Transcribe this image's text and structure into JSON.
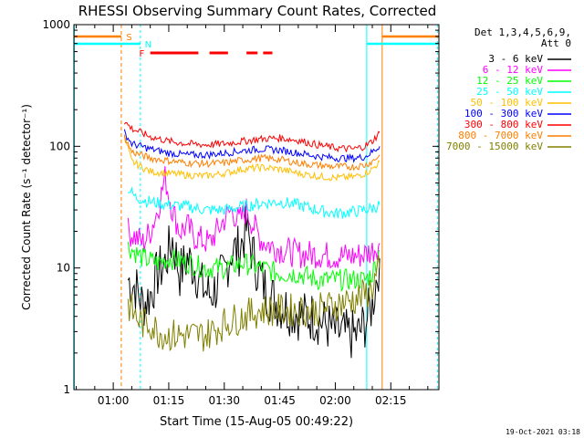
{
  "chart_data": {
    "type": "line",
    "title": "RHESSI Observing Summary Count Rates, Corrected",
    "xlabel": "Start Time (15-Aug-05 00:49:22)",
    "ylabel": "Corrected Count Rate (s⁻¹ detector⁻¹)",
    "y_scale": "log",
    "ylim": [
      1,
      1000
    ],
    "xlim": [
      "00:49:22",
      "02:28:00"
    ],
    "x_ticks": [
      "01:00",
      "01:15",
      "01:30",
      "01:45",
      "02:00",
      "02:15"
    ],
    "y_ticks": [
      "1",
      "10",
      "100",
      "1000"
    ],
    "grid": false,
    "legend_header": [
      "Det 1,3,4,5,6,9,",
      "Att 0"
    ],
    "legend_position": "right",
    "footer_date": "19-Oct-2021 03:18",
    "flags": [
      {
        "label": "S",
        "color": "#ff7f00"
      },
      {
        "label": "N",
        "color": "#00ffff"
      },
      {
        "label": "F",
        "color": "#ff0000"
      }
    ],
    "series": [
      {
        "name": "3 - 6 keV",
        "color": "#000000",
        "points": [
          [
            "01:04",
            8
          ],
          [
            "01:06",
            7
          ],
          [
            "01:08",
            5
          ],
          [
            "01:10",
            6
          ],
          [
            "01:12",
            9
          ],
          [
            "01:14",
            11
          ],
          [
            "01:16",
            17
          ],
          [
            "01:18",
            9
          ],
          [
            "01:20",
            12
          ],
          [
            "01:22",
            10
          ],
          [
            "01:24",
            7
          ],
          [
            "01:26",
            6
          ],
          [
            "01:28",
            7
          ],
          [
            "01:30",
            9
          ],
          [
            "01:32",
            14
          ],
          [
            "01:34",
            14
          ],
          [
            "01:36",
            21
          ],
          [
            "01:38",
            12
          ],
          [
            "01:40",
            8
          ],
          [
            "01:42",
            6
          ],
          [
            "01:45",
            5
          ],
          [
            "01:48",
            4.5
          ],
          [
            "01:51",
            4
          ],
          [
            "01:54",
            4
          ],
          [
            "01:57",
            3.5
          ],
          [
            "02:00",
            3
          ],
          [
            "02:03",
            2.8
          ],
          [
            "02:06",
            2.8
          ],
          [
            "02:08",
            3.5
          ],
          [
            "02:10",
            5
          ],
          [
            "02:12",
            12
          ]
        ]
      },
      {
        "name": "6 - 12 keV",
        "color": "#ff00ff",
        "points": [
          [
            "01:04",
            20
          ],
          [
            "01:06",
            18
          ],
          [
            "01:08",
            16
          ],
          [
            "01:10",
            20
          ],
          [
            "01:12",
            30
          ],
          [
            "01:14",
            55
          ],
          [
            "01:16",
            30
          ],
          [
            "01:18",
            20
          ],
          [
            "01:20",
            22
          ],
          [
            "01:22",
            18
          ],
          [
            "01:24",
            17
          ],
          [
            "01:26",
            16
          ],
          [
            "01:28",
            20
          ],
          [
            "01:30",
            25
          ],
          [
            "01:32",
            30
          ],
          [
            "01:34",
            24
          ],
          [
            "01:36",
            30
          ],
          [
            "01:38",
            22
          ],
          [
            "01:40",
            17
          ],
          [
            "01:43",
            15
          ],
          [
            "01:46",
            14
          ],
          [
            "01:50",
            13
          ],
          [
            "01:55",
            13
          ],
          [
            "02:00",
            12.5
          ],
          [
            "02:05",
            12.5
          ],
          [
            "02:08",
            13
          ],
          [
            "02:10",
            14
          ],
          [
            "02:12",
            16
          ]
        ]
      },
      {
        "name": "12 - 25 keV",
        "color": "#00ff00",
        "points": [
          [
            "01:04",
            15
          ],
          [
            "01:08",
            12
          ],
          [
            "01:12",
            11
          ],
          [
            "01:15",
            12
          ],
          [
            "01:20",
            11
          ],
          [
            "01:25",
            10
          ],
          [
            "01:30",
            10
          ],
          [
            "01:35",
            11
          ],
          [
            "01:40",
            10
          ],
          [
            "01:45",
            9
          ],
          [
            "01:50",
            9
          ],
          [
            "01:55",
            8
          ],
          [
            "02:00",
            8
          ],
          [
            "02:05",
            8
          ],
          [
            "02:08",
            8
          ],
          [
            "02:10",
            9
          ],
          [
            "02:12",
            14
          ]
        ]
      },
      {
        "name": "25 - 50 keV",
        "color": "#00ffff",
        "points": [
          [
            "01:04",
            45
          ],
          [
            "01:06",
            38
          ],
          [
            "01:10",
            35
          ],
          [
            "01:15",
            33
          ],
          [
            "01:20",
            32
          ],
          [
            "01:25",
            30
          ],
          [
            "01:30",
            30
          ],
          [
            "01:35",
            32
          ],
          [
            "01:40",
            34
          ],
          [
            "01:45",
            35
          ],
          [
            "01:50",
            33
          ],
          [
            "01:55",
            30
          ],
          [
            "02:00",
            28
          ],
          [
            "02:05",
            29
          ],
          [
            "02:08",
            30
          ],
          [
            "02:10",
            31
          ],
          [
            "02:12",
            33
          ]
        ]
      },
      {
        "name": "50 - 100 keV",
        "color": "#ffbf00",
        "points": [
          [
            "01:03",
            120
          ],
          [
            "01:05",
            75
          ],
          [
            "01:10",
            62
          ],
          [
            "01:15",
            60
          ],
          [
            "01:20",
            58
          ],
          [
            "01:25",
            57
          ],
          [
            "01:30",
            60
          ],
          [
            "01:35",
            65
          ],
          [
            "01:40",
            67
          ],
          [
            "01:45",
            65
          ],
          [
            "01:50",
            60
          ],
          [
            "01:55",
            57
          ],
          [
            "02:00",
            55
          ],
          [
            "02:05",
            56
          ],
          [
            "02:08",
            60
          ],
          [
            "02:10",
            65
          ],
          [
            "02:12",
            75
          ]
        ]
      },
      {
        "name": "100 - 300 keV",
        "color": "#0000ff",
        "points": [
          [
            "01:03",
            130
          ],
          [
            "01:05",
            105
          ],
          [
            "01:10",
            95
          ],
          [
            "01:15",
            88
          ],
          [
            "01:20",
            85
          ],
          [
            "01:25",
            85
          ],
          [
            "01:30",
            88
          ],
          [
            "01:35",
            92
          ],
          [
            "01:40",
            95
          ],
          [
            "01:45",
            93
          ],
          [
            "01:50",
            88
          ],
          [
            "01:55",
            83
          ],
          [
            "02:00",
            80
          ],
          [
            "02:05",
            80
          ],
          [
            "02:08",
            82
          ],
          [
            "02:10",
            90
          ],
          [
            "02:12",
            100
          ]
        ]
      },
      {
        "name": "300 - 800 keV",
        "color": "#ff0000",
        "points": [
          [
            "01:03",
            160
          ],
          [
            "01:05",
            140
          ],
          [
            "01:10",
            120
          ],
          [
            "01:15",
            110
          ],
          [
            "01:20",
            105
          ],
          [
            "01:25",
            103
          ],
          [
            "01:30",
            105
          ],
          [
            "01:35",
            110
          ],
          [
            "01:40",
            115
          ],
          [
            "01:45",
            117
          ],
          [
            "01:50",
            112
          ],
          [
            "01:55",
            103
          ],
          [
            "02:00",
            97
          ],
          [
            "02:05",
            95
          ],
          [
            "02:08",
            100
          ],
          [
            "02:10",
            110
          ],
          [
            "02:12",
            130
          ]
        ]
      },
      {
        "name": "800 - 7000 keV",
        "color": "#ff7f00",
        "points": [
          [
            "01:03",
            120
          ],
          [
            "01:05",
            90
          ],
          [
            "01:10",
            80
          ],
          [
            "01:15",
            76
          ],
          [
            "01:20",
            73
          ],
          [
            "01:25",
            72
          ],
          [
            "01:30",
            73
          ],
          [
            "01:35",
            77
          ],
          [
            "01:40",
            80
          ],
          [
            "01:45",
            78
          ],
          [
            "01:50",
            73
          ],
          [
            "01:55",
            70
          ],
          [
            "02:00",
            68
          ],
          [
            "02:05",
            68
          ],
          [
            "02:08",
            70
          ],
          [
            "02:10",
            75
          ],
          [
            "02:12",
            85
          ]
        ]
      },
      {
        "name": "7000 - 15000 keV",
        "color": "#808000",
        "points": [
          [
            "01:04",
            5
          ],
          [
            "01:06",
            4
          ],
          [
            "01:08",
            3.5
          ],
          [
            "01:10",
            3.5
          ],
          [
            "01:12",
            3
          ],
          [
            "01:15",
            2.8
          ],
          [
            "01:20",
            2.8
          ],
          [
            "01:25",
            2.8
          ],
          [
            "01:30",
            3.5
          ],
          [
            "01:35",
            4
          ],
          [
            "01:40",
            4.5
          ],
          [
            "01:45",
            4.5
          ],
          [
            "01:50",
            4.5
          ],
          [
            "01:55",
            4.5
          ],
          [
            "02:00",
            5
          ],
          [
            "02:05",
            5.5
          ],
          [
            "02:08",
            6
          ],
          [
            "02:10",
            7
          ],
          [
            "02:12",
            10
          ]
        ]
      }
    ]
  }
}
